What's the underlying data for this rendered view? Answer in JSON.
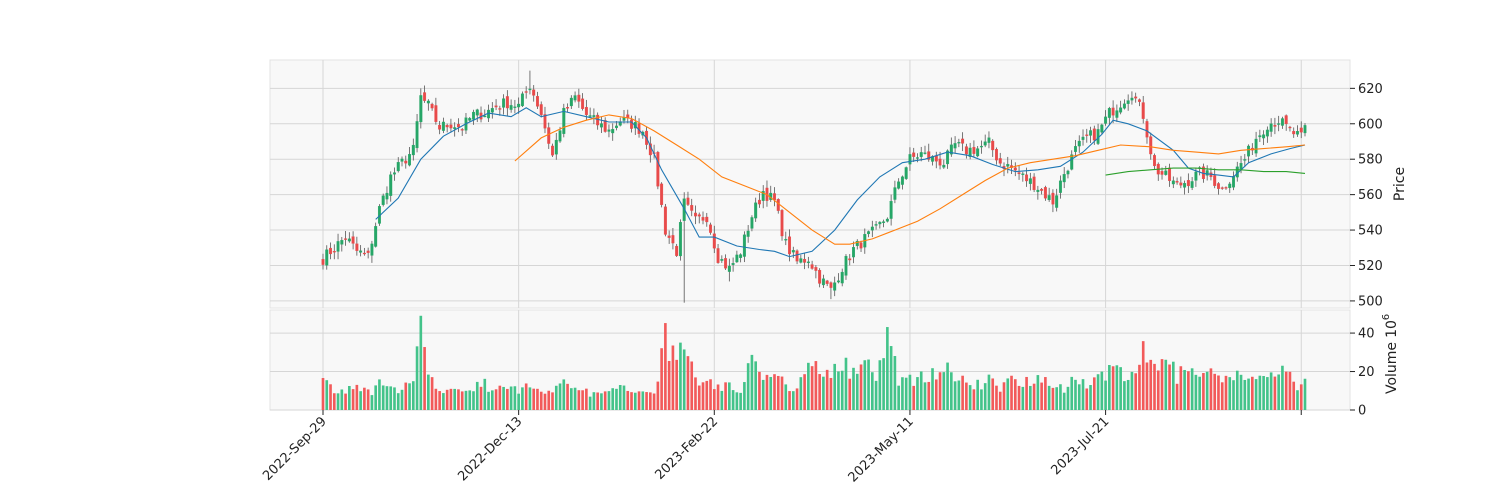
{
  "chart_data": {
    "type": "candlestick",
    "title": "",
    "price_axis": {
      "label": "Price",
      "ticks": [
        500,
        520,
        540,
        560,
        580,
        600,
        620
      ],
      "ylim": [
        496,
        636
      ]
    },
    "volume_axis": {
      "label": "Volume",
      "exponent_label": "10",
      "exponent_power": "6",
      "ticks": [
        0,
        20,
        40
      ],
      "ylim": [
        0,
        52
      ]
    },
    "x_ticks": [
      {
        "index": 0,
        "label": "2022-Sep-29"
      },
      {
        "index": 52,
        "label": "2022-Dec-13"
      },
      {
        "index": 104,
        "label": "2023-Feb-22"
      },
      {
        "index": 156,
        "label": "2023-May-11"
      },
      {
        "index": 208,
        "label": "2023-Jul-21"
      },
      {
        "index": 260,
        "label": ""
      }
    ],
    "grid": true,
    "colors": {
      "up": "#26a667",
      "down": "#e84a4a",
      "up_volume": "#43c38a",
      "down_volume": "#f25a5a",
      "ma_short": "#1f77b4",
      "ma_mid": "#ff7f0e",
      "ma_long": "#2ca02c",
      "panel_bg": "#f8f8f8",
      "grid": "#d6d6d6"
    },
    "anchors": [
      [
        0,
        524,
        18
      ],
      [
        3,
        530,
        9
      ],
      [
        6,
        536,
        10
      ],
      [
        9,
        528,
        11
      ],
      [
        12,
        525,
        9
      ],
      [
        15,
        552,
        13
      ],
      [
        18,
        570,
        10
      ],
      [
        21,
        578,
        12
      ],
      [
        24,
        585,
        13
      ],
      [
        26,
        615,
        44
      ],
      [
        28,
        610,
        15
      ],
      [
        31,
        598,
        12
      ],
      [
        34,
        600,
        10
      ],
      [
        37,
        598,
        9
      ],
      [
        40,
        605,
        12
      ],
      [
        43,
        606,
        13
      ],
      [
        46,
        610,
        11
      ],
      [
        49,
        612,
        10
      ],
      [
        52,
        610,
        11
      ],
      [
        55,
        622,
        12
      ],
      [
        58,
        606,
        9
      ],
      [
        61,
        582,
        10
      ],
      [
        64,
        606,
        20
      ],
      [
        67,
        615,
        11
      ],
      [
        70,
        605,
        9
      ],
      [
        73,
        600,
        8
      ],
      [
        76,
        596,
        9
      ],
      [
        79,
        602,
        11
      ],
      [
        82,
        600,
        12
      ],
      [
        85,
        596,
        10
      ],
      [
        88,
        580,
        9
      ],
      [
        91,
        540,
        40
      ],
      [
        94,
        528,
        21
      ],
      [
        96,
        555,
        39
      ],
      [
        99,
        545,
        16
      ],
      [
        102,
        548,
        14
      ],
      [
        105,
        525,
        13
      ],
      [
        108,
        518,
        12
      ],
      [
        111,
        528,
        11
      ],
      [
        114,
        548,
        28
      ],
      [
        117,
        562,
        18
      ],
      [
        120,
        556,
        17
      ],
      [
        123,
        532,
        13
      ],
      [
        126,
        522,
        12
      ],
      [
        129,
        524,
        30
      ],
      [
        132,
        513,
        17
      ],
      [
        135,
        506,
        21
      ],
      [
        138,
        519,
        24
      ],
      [
        141,
        529,
        18
      ],
      [
        144,
        535,
        22
      ],
      [
        147,
        540,
        20
      ],
      [
        150,
        548,
        38
      ],
      [
        153,
        568,
        16
      ],
      [
        156,
        580,
        15
      ],
      [
        159,
        583,
        18
      ],
      [
        162,
        580,
        20
      ],
      [
        165,
        578,
        22
      ],
      [
        168,
        588,
        17
      ],
      [
        171,
        585,
        14
      ],
      [
        174,
        586,
        13
      ],
      [
        177,
        589,
        15
      ],
      [
        180,
        578,
        12
      ],
      [
        183,
        575,
        16
      ],
      [
        186,
        570,
        14
      ],
      [
        189,
        566,
        18
      ],
      [
        192,
        560,
        16
      ],
      [
        194,
        556,
        13
      ],
      [
        197,
        572,
        12
      ],
      [
        200,
        585,
        15
      ],
      [
        203,
        592,
        14
      ],
      [
        206,
        595,
        19
      ],
      [
        209,
        606,
        20
      ],
      [
        212,
        612,
        18
      ],
      [
        215,
        618,
        16
      ],
      [
        218,
        605,
        30
      ],
      [
        221,
        575,
        24
      ],
      [
        224,
        570,
        27
      ],
      [
        227,
        565,
        17
      ],
      [
        230,
        568,
        21
      ],
      [
        233,
        572,
        16
      ],
      [
        236,
        570,
        18
      ],
      [
        239,
        563,
        14
      ],
      [
        242,
        572,
        17
      ],
      [
        245,
        580,
        19
      ],
      [
        248,
        592,
        14
      ],
      [
        251,
        600,
        17
      ],
      [
        254,
        602,
        22
      ],
      [
        257,
        596,
        19
      ],
      [
        260,
        592,
        11
      ],
      [
        261,
        597,
        21
      ]
    ],
    "ma_short": [
      [
        14,
        546
      ],
      [
        20,
        558
      ],
      [
        26,
        580
      ],
      [
        32,
        593
      ],
      [
        38,
        600
      ],
      [
        44,
        606
      ],
      [
        50,
        604
      ],
      [
        54,
        609
      ],
      [
        58,
        604
      ],
      [
        64,
        607
      ],
      [
        70,
        604
      ],
      [
        76,
        601
      ],
      [
        82,
        601
      ],
      [
        86,
        592
      ],
      [
        90,
        574
      ],
      [
        96,
        552
      ],
      [
        100,
        536
      ],
      [
        104,
        536
      ],
      [
        110,
        531
      ],
      [
        116,
        529
      ],
      [
        120,
        528
      ],
      [
        124,
        525
      ],
      [
        130,
        528
      ],
      [
        136,
        540
      ],
      [
        142,
        557
      ],
      [
        148,
        570
      ],
      [
        154,
        578
      ],
      [
        160,
        580
      ],
      [
        166,
        584
      ],
      [
        172,
        582
      ],
      [
        178,
        577
      ],
      [
        184,
        573
      ],
      [
        190,
        574
      ],
      [
        196,
        576
      ],
      [
        202,
        584
      ],
      [
        207,
        594
      ],
      [
        210,
        602
      ],
      [
        214,
        600
      ],
      [
        219,
        596
      ],
      [
        226,
        585
      ],
      [
        230,
        575
      ],
      [
        234,
        572
      ],
      [
        238,
        571
      ],
      [
        242,
        570
      ],
      [
        246,
        578
      ],
      [
        252,
        583
      ],
      [
        257,
        586
      ],
      [
        261,
        588
      ]
    ],
    "ma_mid": [
      [
        51,
        579
      ],
      [
        58,
        592
      ],
      [
        64,
        598
      ],
      [
        70,
        602
      ],
      [
        76,
        605
      ],
      [
        82,
        603
      ],
      [
        88,
        596
      ],
      [
        94,
        588
      ],
      [
        100,
        580
      ],
      [
        106,
        570
      ],
      [
        112,
        565
      ],
      [
        118,
        560
      ],
      [
        124,
        550
      ],
      [
        130,
        540
      ],
      [
        136,
        532
      ],
      [
        140,
        532
      ],
      [
        146,
        535
      ],
      [
        152,
        540
      ],
      [
        158,
        545
      ],
      [
        164,
        552
      ],
      [
        170,
        560
      ],
      [
        176,
        568
      ],
      [
        182,
        575
      ],
      [
        188,
        578
      ],
      [
        194,
        580
      ],
      [
        200,
        582
      ],
      [
        206,
        585
      ],
      [
        212,
        588
      ],
      [
        220,
        587
      ],
      [
        226,
        585
      ],
      [
        232,
        584
      ],
      [
        238,
        583
      ],
      [
        244,
        585
      ],
      [
        250,
        586
      ],
      [
        256,
        587
      ],
      [
        261,
        588
      ]
    ],
    "ma_long": [
      [
        208,
        571
      ],
      [
        214,
        573
      ],
      [
        220,
        574
      ],
      [
        226,
        575
      ],
      [
        232,
        575
      ],
      [
        238,
        574
      ],
      [
        244,
        574
      ],
      [
        250,
        573
      ],
      [
        256,
        573
      ],
      [
        261,
        572
      ]
    ]
  }
}
